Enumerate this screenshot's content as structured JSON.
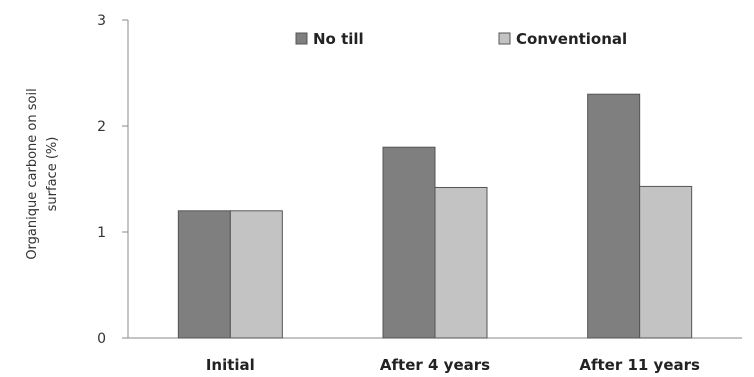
{
  "chart_data": {
    "type": "bar",
    "title": "",
    "ylabel": "Organique carbone on soil surface (%)",
    "ylabel_lines": [
      "Organique carbone on soil",
      "surface (%)"
    ],
    "xlabel": "",
    "categories": [
      "Initial",
      "After 4 years",
      "After 11 years"
    ],
    "series": [
      {
        "name": "No till",
        "values": [
          1.2,
          1.8,
          2.3
        ],
        "color": "#7f7f7f"
      },
      {
        "name": "Conventional",
        "values": [
          1.2,
          1.42,
          1.43
        ],
        "color": "#c3c3c3"
      }
    ],
    "ylim": [
      0,
      3
    ],
    "yticks": [
      0,
      1,
      2,
      3
    ],
    "grid": false,
    "legend": "top"
  }
}
